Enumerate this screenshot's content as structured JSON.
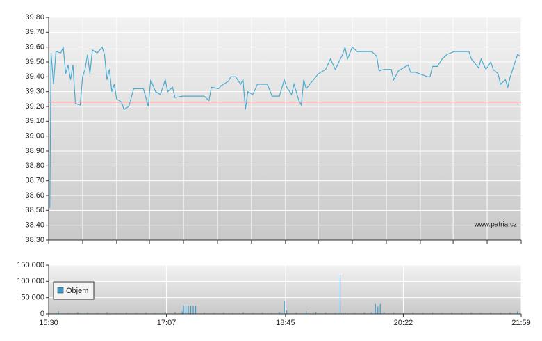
{
  "chart_data": [
    {
      "type": "line",
      "annotation": "www.patria.cz",
      "x": [
        930,
        931,
        932,
        934,
        936,
        940,
        942,
        944,
        946,
        948,
        950,
        952,
        956,
        958,
        960,
        962,
        964,
        966,
        970,
        974,
        976,
        978,
        980,
        982,
        984,
        986,
        990,
        992,
        996,
        1000,
        1004,
        1008,
        1012,
        1014,
        1018,
        1022,
        1026,
        1028,
        1032,
        1034,
        1040,
        1058,
        1062,
        1064,
        1070,
        1072,
        1078,
        1080,
        1084,
        1088,
        1090,
        1092,
        1094,
        1098,
        1102,
        1110,
        1114,
        1120,
        1124,
        1126,
        1130,
        1132,
        1136,
        1138,
        1140,
        1142,
        1146,
        1152,
        1158,
        1162,
        1166,
        1172,
        1174,
        1176,
        1180,
        1184,
        1196,
        1200,
        1202,
        1206,
        1212,
        1214,
        1218,
        1226,
        1228,
        1232,
        1242,
        1244,
        1246,
        1250,
        1254,
        1258,
        1264,
        1276,
        1278,
        1282,
        1284,
        1286,
        1290,
        1294,
        1296,
        1300,
        1302,
        1306,
        1308,
        1310,
        1312,
        1314,
        1316,
        1318
      ],
      "values": [
        38.52,
        38.52,
        39.56,
        39.35,
        39.57,
        39.56,
        39.6,
        39.42,
        39.48,
        39.38,
        39.48,
        39.22,
        39.21,
        39.4,
        39.45,
        39.55,
        39.42,
        39.58,
        39.56,
        39.6,
        39.55,
        39.38,
        39.45,
        39.3,
        39.35,
        39.25,
        39.23,
        39.18,
        39.2,
        39.32,
        39.32,
        39.32,
        39.2,
        39.38,
        39.3,
        39.28,
        39.38,
        39.3,
        39.33,
        39.26,
        39.27,
        39.27,
        39.24,
        39.33,
        39.32,
        39.34,
        39.37,
        39.4,
        39.4,
        39.35,
        39.38,
        39.18,
        39.3,
        39.28,
        39.35,
        39.35,
        39.27,
        39.27,
        39.38,
        39.33,
        39.28,
        39.35,
        39.24,
        39.21,
        39.38,
        39.32,
        39.36,
        39.42,
        39.45,
        39.52,
        39.45,
        39.55,
        39.6,
        39.52,
        39.6,
        39.57,
        39.57,
        39.54,
        39.44,
        39.45,
        39.45,
        39.38,
        39.44,
        39.48,
        39.43,
        39.43,
        39.4,
        39.4,
        39.47,
        39.47,
        39.52,
        39.55,
        39.57,
        39.57,
        39.52,
        39.48,
        39.46,
        39.52,
        39.45,
        39.5,
        39.45,
        39.42,
        39.35,
        39.38,
        39.33,
        39.4,
        39.45,
        39.5,
        39.55,
        39.54
      ],
      "color": "#4aaad0",
      "reference_line": {
        "value": 39.23,
        "color": "#e05050"
      },
      "xlim": [
        930,
        1319
      ],
      "xticks": [
        930,
        958,
        986,
        1013,
        1041,
        1069,
        1097,
        1125,
        1152,
        1180,
        1208,
        1236,
        1263,
        1291,
        1319
      ],
      "ylim": [
        38.3,
        39.8
      ],
      "yticks": [
        {
          "value": 38.3,
          "label": "38,30"
        },
        {
          "value": 38.4,
          "label": "38,40"
        },
        {
          "value": 38.5,
          "label": "38,50"
        },
        {
          "value": 38.6,
          "label": "38,60"
        },
        {
          "value": 38.7,
          "label": "38,70"
        },
        {
          "value": 38.8,
          "label": "38,80"
        },
        {
          "value": 38.9,
          "label": "38,90"
        },
        {
          "value": 39.0,
          "label": "39,00"
        },
        {
          "value": 39.1,
          "label": "39,10"
        },
        {
          "value": 39.2,
          "label": "39,20"
        },
        {
          "value": 39.3,
          "label": "39,30"
        },
        {
          "value": 39.4,
          "label": "39,40"
        },
        {
          "value": 39.5,
          "label": "39,50"
        },
        {
          "value": 39.6,
          "label": "39,60"
        },
        {
          "value": 39.7,
          "label": "39,70"
        },
        {
          "value": 39.8,
          "label": "39,80"
        }
      ],
      "grid": true
    },
    {
      "type": "bar",
      "series": [
        {
          "name": "Objem",
          "color": "#3a9ccc",
          "x": [
            930,
            938,
            946,
            954,
            962,
            970,
            978,
            986,
            994,
            1002,
            1010,
            1018,
            1026,
            1034,
            1040,
            1041,
            1043,
            1045,
            1047,
            1049,
            1051,
            1058,
            1066,
            1074,
            1082,
            1090,
            1098,
            1106,
            1114,
            1120,
            1124,
            1126,
            1134,
            1142,
            1150,
            1158,
            1166,
            1170,
            1174,
            1182,
            1190,
            1196,
            1199,
            1201,
            1203,
            1206,
            1214,
            1222,
            1230,
            1238,
            1246,
            1254,
            1262,
            1270,
            1278,
            1286,
            1294,
            1302,
            1310,
            1316
          ],
          "values": [
            3000,
            8000,
            2000,
            5000,
            3000,
            2000,
            4000,
            2000,
            3000,
            2000,
            3000,
            2000,
            5000,
            4000,
            8000,
            25000,
            25000,
            25000,
            25000,
            25000,
            25000,
            3000,
            2000,
            3000,
            2000,
            4000,
            2000,
            3000,
            2000,
            5000,
            40000,
            10000,
            3000,
            8000,
            5000,
            3000,
            2000,
            120000,
            3000,
            2000,
            3000,
            6000,
            30000,
            22000,
            30000,
            5000,
            3000,
            2000,
            3000,
            2000,
            3000,
            2000,
            3000,
            2000,
            3000,
            2000,
            3000,
            2000,
            3000,
            8000
          ]
        }
      ],
      "xlim": [
        930,
        1319
      ],
      "xticks": [
        {
          "value": 930,
          "label": "15:30"
        },
        {
          "value": 1027,
          "label": "17:07"
        },
        {
          "value": 1125,
          "label": "18:45"
        },
        {
          "value": 1222,
          "label": "20:22"
        },
        {
          "value": 1319,
          "label": "21:59"
        }
      ],
      "ylim": [
        0,
        150000
      ],
      "yticks": [
        0,
        {
          "value": 50000,
          "label": "50 000"
        },
        {
          "value": 100000,
          "label": "100 000"
        },
        {
          "value": 150000,
          "label": "150 000"
        }
      ],
      "grid": true
    }
  ]
}
